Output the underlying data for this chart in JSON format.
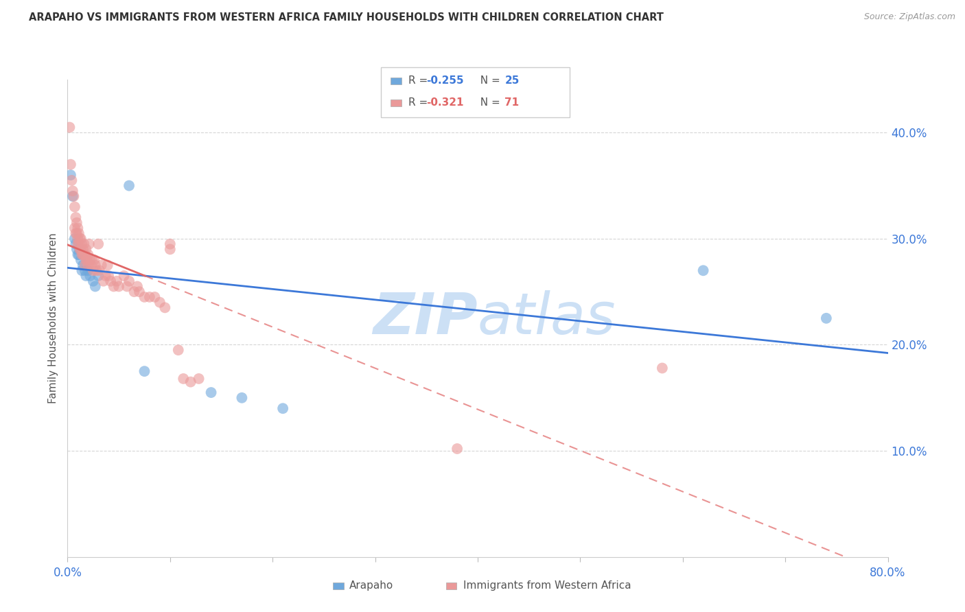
{
  "title": "ARAPAHO VS IMMIGRANTS FROM WESTERN AFRICA FAMILY HOUSEHOLDS WITH CHILDREN CORRELATION CHART",
  "source": "Source: ZipAtlas.com",
  "ylabel": "Family Households with Children",
  "xlim": [
    0.0,
    0.8
  ],
  "ylim": [
    0.0,
    0.45
  ],
  "yticks": [
    0.1,
    0.2,
    0.3,
    0.4
  ],
  "ytick_labels": [
    "10.0%",
    "20.0%",
    "30.0%",
    "40.0%"
  ],
  "xticks": [
    0.0,
    0.1,
    0.2,
    0.3,
    0.4,
    0.5,
    0.6,
    0.7,
    0.8
  ],
  "xtick_labels": [
    "0.0%",
    "",
    "",
    "",
    "",
    "",
    "",
    "",
    "80.0%"
  ],
  "legend_blue_R": "-0.255",
  "legend_blue_N": "25",
  "legend_pink_R": "-0.321",
  "legend_pink_N": "71",
  "blue_color": "#6fa8dc",
  "pink_color": "#ea9999",
  "blue_line_color": "#3c78d8",
  "pink_line_color": "#e06666",
  "watermark_color": "#cce0f5",
  "background_color": "#ffffff",
  "arapaho_points": [
    [
      0.003,
      0.36
    ],
    [
      0.005,
      0.34
    ],
    [
      0.007,
      0.3
    ],
    [
      0.008,
      0.295
    ],
    [
      0.009,
      0.29
    ],
    [
      0.01,
      0.285
    ],
    [
      0.011,
      0.285
    ],
    [
      0.012,
      0.29
    ],
    [
      0.013,
      0.28
    ],
    [
      0.014,
      0.27
    ],
    [
      0.015,
      0.275
    ],
    [
      0.017,
      0.27
    ],
    [
      0.018,
      0.265
    ],
    [
      0.02,
      0.27
    ],
    [
      0.022,
      0.265
    ],
    [
      0.025,
      0.26
    ],
    [
      0.027,
      0.255
    ],
    [
      0.03,
      0.265
    ],
    [
      0.06,
      0.35
    ],
    [
      0.075,
      0.175
    ],
    [
      0.14,
      0.155
    ],
    [
      0.17,
      0.15
    ],
    [
      0.21,
      0.14
    ],
    [
      0.62,
      0.27
    ],
    [
      0.74,
      0.225
    ]
  ],
  "western_africa_points": [
    [
      0.002,
      0.405
    ],
    [
      0.003,
      0.37
    ],
    [
      0.004,
      0.355
    ],
    [
      0.005,
      0.345
    ],
    [
      0.006,
      0.34
    ],
    [
      0.007,
      0.33
    ],
    [
      0.007,
      0.31
    ],
    [
      0.008,
      0.32
    ],
    [
      0.008,
      0.305
    ],
    [
      0.009,
      0.315
    ],
    [
      0.009,
      0.305
    ],
    [
      0.01,
      0.31
    ],
    [
      0.01,
      0.3
    ],
    [
      0.01,
      0.295
    ],
    [
      0.011,
      0.305
    ],
    [
      0.011,
      0.295
    ],
    [
      0.012,
      0.3
    ],
    [
      0.012,
      0.29
    ],
    [
      0.013,
      0.3
    ],
    [
      0.013,
      0.29
    ],
    [
      0.014,
      0.295
    ],
    [
      0.014,
      0.285
    ],
    [
      0.015,
      0.29
    ],
    [
      0.015,
      0.285
    ],
    [
      0.016,
      0.285
    ],
    [
      0.016,
      0.295
    ],
    [
      0.017,
      0.285
    ],
    [
      0.017,
      0.275
    ],
    [
      0.018,
      0.29
    ],
    [
      0.018,
      0.28
    ],
    [
      0.019,
      0.28
    ],
    [
      0.02,
      0.285
    ],
    [
      0.02,
      0.275
    ],
    [
      0.021,
      0.295
    ],
    [
      0.022,
      0.28
    ],
    [
      0.023,
      0.275
    ],
    [
      0.024,
      0.28
    ],
    [
      0.025,
      0.27
    ],
    [
      0.026,
      0.28
    ],
    [
      0.027,
      0.275
    ],
    [
      0.028,
      0.27
    ],
    [
      0.03,
      0.295
    ],
    [
      0.031,
      0.27
    ],
    [
      0.033,
      0.275
    ],
    [
      0.035,
      0.26
    ],
    [
      0.037,
      0.265
    ],
    [
      0.039,
      0.275
    ],
    [
      0.04,
      0.265
    ],
    [
      0.042,
      0.26
    ],
    [
      0.045,
      0.255
    ],
    [
      0.048,
      0.26
    ],
    [
      0.05,
      0.255
    ],
    [
      0.055,
      0.265
    ],
    [
      0.058,
      0.255
    ],
    [
      0.06,
      0.26
    ],
    [
      0.065,
      0.25
    ],
    [
      0.068,
      0.255
    ],
    [
      0.07,
      0.25
    ],
    [
      0.075,
      0.245
    ],
    [
      0.08,
      0.245
    ],
    [
      0.09,
      0.24
    ],
    [
      0.095,
      0.235
    ],
    [
      0.1,
      0.29
    ],
    [
      0.108,
      0.195
    ],
    [
      0.113,
      0.168
    ],
    [
      0.128,
      0.168
    ],
    [
      0.1,
      0.295
    ],
    [
      0.38,
      0.102
    ],
    [
      0.58,
      0.178
    ],
    [
      0.085,
      0.245
    ],
    [
      0.12,
      0.165
    ]
  ]
}
